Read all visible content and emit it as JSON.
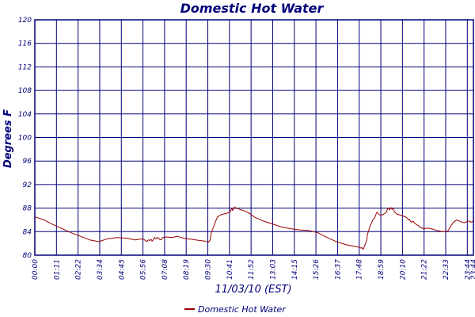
{
  "chart_data": {
    "type": "line",
    "title": "Domestic Hot Water",
    "xlabel": "11/03/10 (EST)",
    "ylabel": "Degrees F",
    "ylim": [
      80,
      120
    ],
    "xlim": [
      0,
      24
    ],
    "yticks": [
      80,
      84,
      88,
      92,
      96,
      100,
      104,
      108,
      112,
      116,
      120
    ],
    "x_tick_labels": [
      "00:00",
      "01:11",
      "02:22",
      "03:34",
      "04:45",
      "05:56",
      "07:08",
      "08:19",
      "09:30",
      "10:41",
      "11:52",
      "13:03",
      "14:15",
      "15:26",
      "16:37",
      "17:48",
      "18:59",
      "20:10",
      "21:22",
      "22:33",
      "23:44",
      "23:44"
    ],
    "grid": true,
    "legend_position": "bottom-center",
    "colors": {
      "series": "#990000",
      "grid": "#00007a",
      "axis": "#00007a"
    },
    "series": [
      {
        "name": "Domestic Hot Water",
        "x": [
          0.0,
          0.5,
          1.0,
          1.5,
          2.0,
          2.5,
          3.0,
          3.5,
          4.0,
          4.5,
          5.0,
          5.5,
          5.9,
          6.05,
          6.12,
          6.22,
          6.3,
          6.36,
          6.42,
          6.48,
          6.55,
          6.62,
          6.7,
          6.78,
          6.82,
          6.9,
          7.0,
          7.2,
          7.5,
          7.8,
          8.0,
          8.3,
          8.6,
          8.8,
          9.0,
          9.3,
          9.5,
          9.6,
          9.63,
          9.7,
          9.78,
          9.85,
          9.9,
          10.0,
          10.2,
          10.5,
          10.7,
          10.78,
          10.82,
          10.88,
          10.95,
          11.0,
          11.05,
          11.2,
          11.5,
          11.8,
          12.0,
          12.5,
          13.0,
          13.5,
          14.0,
          14.5,
          15.0,
          15.5,
          16.0,
          16.5,
          17.0,
          17.5,
          17.7,
          17.85,
          17.9,
          17.95,
          18.0,
          18.05,
          18.1,
          18.15,
          18.2,
          18.35,
          18.5,
          18.6,
          18.65,
          18.7,
          18.75,
          18.8,
          18.9,
          19.05,
          19.15,
          19.25,
          19.3,
          19.35,
          19.42,
          19.48,
          19.55,
          19.6,
          19.65,
          19.7,
          19.8,
          20.0,
          20.2,
          20.35,
          20.4,
          20.45,
          20.5,
          20.55,
          20.6,
          20.7,
          20.8,
          20.9,
          21.0,
          21.1,
          21.3,
          21.5,
          21.8,
          22.0,
          22.3,
          22.6,
          22.9,
          23.1,
          23.3,
          23.5,
          23.7,
          23.9,
          24.0
        ],
        "y": [
          86.5,
          86.0,
          85.2,
          84.5,
          83.8,
          83.2,
          82.6,
          82.3,
          82.8,
          83.0,
          82.9,
          82.6,
          82.8,
          82.5,
          82.3,
          82.6,
          82.5,
          82.7,
          82.4,
          82.6,
          83.0,
          82.8,
          83.0,
          82.9,
          82.7,
          82.6,
          83.0,
          83.1,
          83.0,
          83.2,
          83.0,
          82.8,
          82.7,
          82.6,
          82.5,
          82.4,
          82.2,
          82.6,
          83.5,
          84.2,
          84.8,
          85.4,
          85.8,
          86.5,
          86.9,
          87.1,
          87.4,
          88.0,
          87.6,
          87.9,
          88.2,
          87.9,
          88.0,
          87.8,
          87.5,
          87.0,
          86.5,
          85.8,
          85.3,
          84.8,
          84.5,
          84.3,
          84.2,
          83.8,
          83.0,
          82.3,
          81.8,
          81.5,
          81.4,
          81.2,
          81.3,
          81.0,
          81.2,
          81.6,
          82.0,
          82.4,
          83.5,
          85.0,
          86.0,
          86.4,
          86.8,
          87.2,
          87.3,
          87.0,
          86.8,
          86.9,
          87.1,
          87.4,
          87.9,
          88.0,
          87.7,
          88.1,
          87.8,
          88.0,
          87.6,
          87.3,
          87.0,
          86.8,
          86.6,
          86.4,
          86.2,
          86.0,
          86.1,
          85.8,
          85.6,
          85.8,
          85.4,
          85.2,
          85.0,
          84.7,
          84.5,
          84.6,
          84.4,
          84.2,
          84.0,
          84.1,
          85.6,
          86.0,
          85.7,
          85.5,
          85.8,
          85.6,
          85.9
        ]
      }
    ]
  }
}
